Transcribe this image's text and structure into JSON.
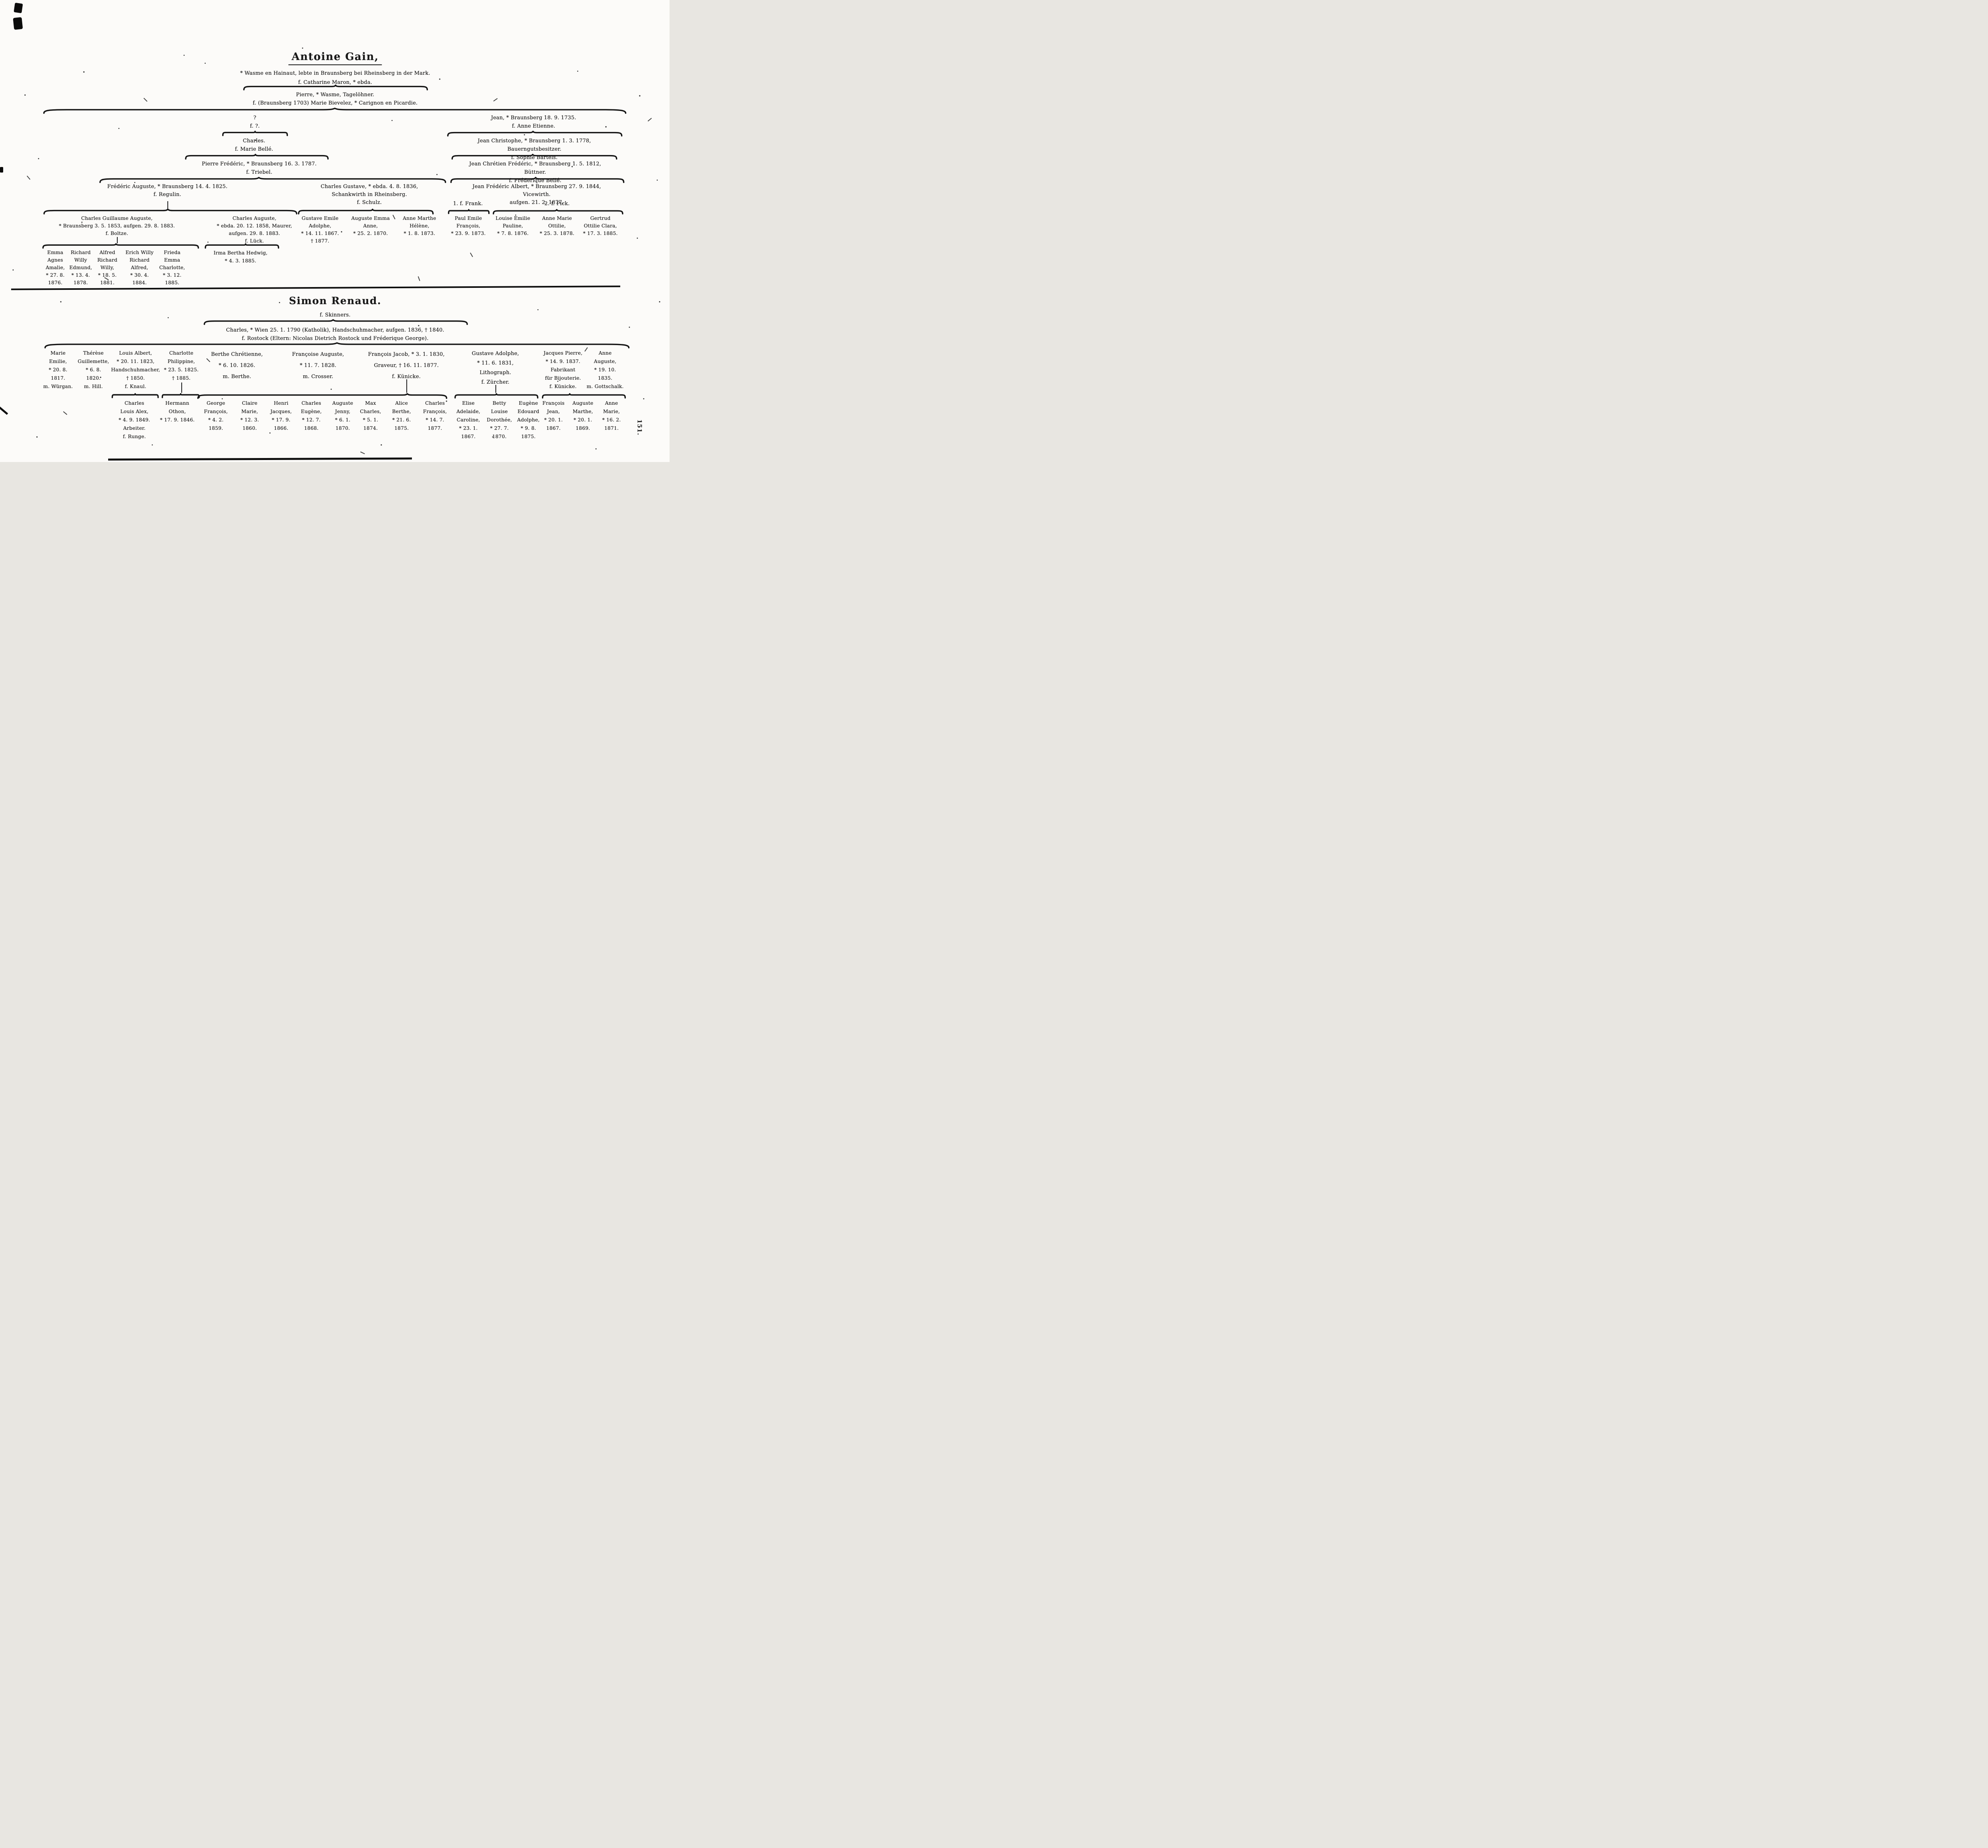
{
  "page": {
    "number": "151."
  },
  "tree_gain": {
    "title": "Antoine Gain,",
    "subtitle": "* Wasme en Hainaut, lebte in Braunsberg bei Rheinsberg in der Mark.",
    "wife": "f. Catharine Maron, * ebda.",
    "gen1": {
      "pierre": "Pierre, * Wasme, Tagelöhner.\nf. (Braunsberg 1703) Marie Bievelez, * Carignon en Picardie."
    },
    "gen2": {
      "unknown": "?\nf. ?.",
      "jean": "Jean, * Braunsberg 18. 9. 1735.\nf. Anne Etienne."
    },
    "gen3": {
      "charles": "Charles.\nf. Marie Bellé.",
      "jean_christophe": "Jean Christophe, * Braunsberg 1. 3. 1778, Bauerngutsbesitzer.\nf. Sophie Bartels."
    },
    "gen4": {
      "pierre_frederic": "Pierre Frédéric, * Braunsberg 16. 3. 1787.\nf. Triebel.",
      "jean_chretien_frederic": "Jean Chrétien Frédéric, * Braunsberg 1. 5. 1812, Büttner.\nf. Fréderique Bellé."
    },
    "gen5": {
      "frederic_auguste": "Frédéric Auguste, * Braunsberg 14. 4. 1825.\nf. Regulin.",
      "charles_gustave": "Charles Gustave, * ebda. 4. 8. 1836,\nSchankwirth in Rheinsberg.\nf. Schulz.",
      "jean_frederic_albert": "Jean Frédéric Albert, * Braunsberg 27. 9. 1844, Vicewirth.\naufgen. 21. 2. 1877.",
      "marriage1": "1. f. Frank.",
      "marriage2": "2. f. Pick."
    },
    "gen6": {
      "charles_guillaume_auguste": "Charles Guillaume Auguste,\n* Braunsberg 3. 5. 1853, aufgen. 29. 8. 1883.\nf. Boltze.",
      "charles_auguste": "Charles Auguste,\n* ebda. 20. 12. 1858, Maurer,\naufgen. 29. 8. 1883.\nf. Lück.",
      "gustave_emile_adolphe": "Gustave Emile\nAdolphe,\n* 14. 11. 1867.\n† 1877.",
      "auguste_emma_anne": "Auguste Emma\nAnne,\n* 25. 2. 1870.",
      "anne_marthe_helene": "Anne Marthe\nHélène,\n* 1. 8. 1873.",
      "paul_emile_francois": "Paul Emile\nFrançois,\n* 23. 9. 1873.",
      "louise_emilie_pauline": "Louise Emilie\nPauline,\n* 7. 8. 1876.",
      "anne_marie_ottilie": "Anne Marie\nOttilie,\n* 25. 3. 1878.",
      "gertrud_ottilie_clara": "Gertrud\nOttilie Clara,\n* 17. 3. 1885."
    },
    "gen7": {
      "emma": "Emma\nAgnes\nAmalie,\n* 27. 8.\n1876.",
      "richard": "Richard\nWilly\nEdmund,\n* 13. 4.\n1878.",
      "alfred": "Alfred\nRichard\nWilly,\n* 18. 5.\n1881.",
      "erich": "Erich Willy\nRichard\nAlfred,\n* 30. 4.\n1884.",
      "frieda": "Frieda\nEmma\nCharlotte,\n* 3. 12.\n1885.",
      "irma": "Irma Bertha Hedwig,\n* 4. 3. 1885."
    }
  },
  "tree_renaud": {
    "title": "Simon Renaud.",
    "wife": "f. Skinners.",
    "gen1": {
      "charles": "Charles, * Wien 25. 1. 1790 (Katholik), Handschuhmacher, aufgen. 1836, † 1840.\nf. Rostock (Eltern: Nicolas Dietrich Rostock und Fréderique George)."
    },
    "gen2": {
      "marie_emilie": "Marie\nEmilie,\n* 20. 8.\n1817.\nm. Würgan.",
      "therese_guillemette": "Thérèse\nGuillemette,\n* 6. 8.\n1820.\nm. Hill.",
      "louis_albert": "Louis Albert,\n* 20. 11. 1823,\nHandschuhmacher,\n† 1850.\nf. Knaul.",
      "charlotte_philippine": "Charlotte\nPhilippine,\n* 23. 5. 1825.\n† 1885.",
      "berthe_chretienne": "Berthe Chrétienne,\n* 6. 10. 1826.\nm. Berthe.",
      "francoise_auguste": "Françoise Auguste,\n* 11. 7. 1828.\nm. Crosser.",
      "francois_jacob": "François Jacob, * 3. 1. 1830,\nGraveur, † 16. 11. 1877.\nf. Künicke.",
      "gustave_adolphe": "Gustave Adolphe,\n* 11. 6. 1831,\nLithograph.\nf. Zürcher.",
      "jacques_pierre": "Jacques Pierre,\n* 14. 9. 1837.\nFabrikant\nfür Bijouterie.\nf. Künicke.",
      "anne_auguste": "Anne\nAuguste,\n* 19. 10.\n1835.\nm. Gottschalk."
    },
    "gen3": {
      "charles_louis_alex": "Charles\nLouis Alex,\n* 4. 9. 1849.\nArbeiter.\nf. Runge.",
      "hermann_othon": "Hermann\nOthon,\n* 17. 9. 1846.",
      "george_francois": "George\nFrançois,\n* 4. 2.\n1859.",
      "claire_marie": "Claire\nMarie,\n* 12. 3.\n1860.",
      "henri_jacques": "Henri\nJacques,\n* 17. 9.\n1866.",
      "charles_eugene": "Charles\nEugène,\n* 12. 7.\n1868.",
      "auguste_jenny": "Auguste\nJenny,\n* 6. 1.\n1870.",
      "max_charles": "Max\nCharles,\n* 5. 1.\n1874.",
      "alice_berthe": "Alice\nBerthe,\n* 21. 6.\n1875.",
      "charles_francois": "Charles\nFrançois,\n* 14. 7.\n1877.",
      "elise_adelaide_caroline": "Elise\nAdelaide,\nCaroline,\n* 23. 1.\n1867.",
      "betty_louise_dorothee": "Betty\nLouise\nDorothée,\n* 27. 7.\n1870.",
      "eugene_edouard_adolphe": "Eugène\nEdouard\nAdolphe,\n* 9. 8.\n1875.",
      "francois_jean": "François\nJean,\n* 20. 1.\n1867.",
      "auguste_marthe": "Auguste\nMarthe,\n* 20. 1.\n1869.",
      "anne_marie": "Anne\nMarie,\n* 16. 2.\n1871."
    }
  }
}
